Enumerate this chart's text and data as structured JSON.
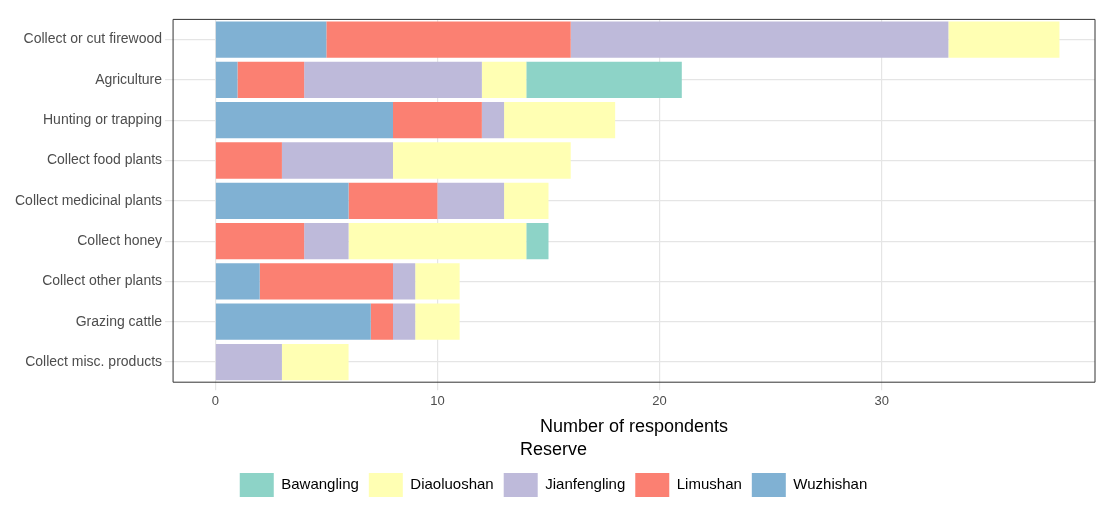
{
  "chart_data": {
    "type": "bar",
    "orientation": "horizontal",
    "stacked": true,
    "categories": [
      "Collect or cut firewood",
      "Agriculture",
      "Hunting or trapping",
      "Collect food plants",
      "Collect medicinal plants",
      "Collect honey",
      "Collect other plants",
      "Grazing cattle",
      "Collect misc. products"
    ],
    "series": [
      {
        "name": "Wuzhishan",
        "color": "#80b1d3",
        "values": [
          5,
          1,
          8,
          0,
          6,
          0,
          2,
          7,
          0
        ]
      },
      {
        "name": "Limushan",
        "color": "#fb8072",
        "values": [
          11,
          3,
          4,
          3,
          4,
          4,
          6,
          1,
          0
        ]
      },
      {
        "name": "Jianfengling",
        "color": "#bebada",
        "values": [
          17,
          8,
          1,
          5,
          3,
          2,
          1,
          1,
          3
        ]
      },
      {
        "name": "Diaoluoshan",
        "color": "#ffffb3",
        "values": [
          5,
          2,
          5,
          8,
          2,
          8,
          2,
          2,
          3
        ]
      },
      {
        "name": "Bawangling",
        "color": "#8dd3c7",
        "values": [
          0,
          7,
          0,
          0,
          0,
          1,
          0,
          0,
          0
        ]
      }
    ],
    "xlabel": "Number of respondents",
    "xlim": [
      -1.9,
      39.6
    ],
    "xticks": [
      0,
      10,
      20,
      30
    ],
    "grid": true,
    "legend": "bottom",
    "legend_title": "Reserve"
  }
}
